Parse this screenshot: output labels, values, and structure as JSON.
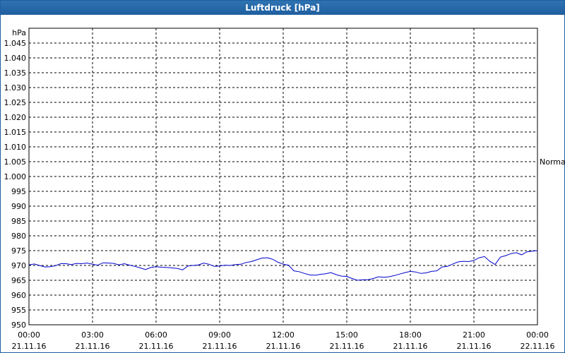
{
  "window": {
    "title": "Luftdruck [hPa]"
  },
  "chart_data": {
    "type": "line",
    "title": "Luftdruck [hPa]",
    "ylabel": "hPa",
    "ylim": [
      950,
      1050
    ],
    "yticks": [
      "1.045",
      "1.040",
      "1.035",
      "1.030",
      "1.025",
      "1.020",
      "1.015",
      "1.010",
      "1.005",
      "1.000",
      "995",
      "990",
      "985",
      "980",
      "975",
      "970",
      "965",
      "960",
      "955",
      "950"
    ],
    "ytick_values": [
      1045,
      1040,
      1035,
      1030,
      1025,
      1020,
      1015,
      1010,
      1005,
      1000,
      995,
      990,
      985,
      980,
      975,
      970,
      965,
      960,
      955,
      950
    ],
    "xticks": [
      {
        "time": "00:00",
        "date": "21.11.16"
      },
      {
        "time": "03:00",
        "date": "21.11.16"
      },
      {
        "time": "06:00",
        "date": "21.11.16"
      },
      {
        "time": "09:00",
        "date": "21.11.16"
      },
      {
        "time": "12:00",
        "date": "21.11.16"
      },
      {
        "time": "15:00",
        "date": "21.11.16"
      },
      {
        "time": "18:00",
        "date": "21.11.16"
      },
      {
        "time": "21:00",
        "date": "21.11.16"
      },
      {
        "time": "00:00",
        "date": "22.11.16"
      }
    ],
    "reference_label": "Normal",
    "reference_value": 1005,
    "grid": true,
    "series_color": "#0000cc",
    "series": [
      {
        "x": [
          "00:00",
          "00:15",
          "00:30",
          "00:45",
          "01:00",
          "01:15",
          "01:30",
          "01:45",
          "02:00",
          "02:15",
          "02:30",
          "02:45",
          "03:00",
          "03:15",
          "03:30",
          "03:45",
          "04:00",
          "04:15",
          "04:30",
          "04:45",
          "05:00",
          "05:15",
          "05:30",
          "05:45",
          "06:00",
          "06:15",
          "06:30",
          "06:45",
          "07:00",
          "07:15",
          "07:30",
          "07:45",
          "08:00",
          "08:15",
          "08:30",
          "08:45",
          "09:00",
          "09:15",
          "09:30",
          "09:45",
          "10:00",
          "10:15",
          "10:30",
          "10:45",
          "11:00",
          "11:15",
          "11:30",
          "11:45",
          "12:00",
          "12:15",
          "12:30",
          "12:45",
          "13:00",
          "13:15",
          "13:30",
          "13:45",
          "14:00",
          "14:15",
          "14:30",
          "14:45",
          "15:00",
          "15:15",
          "15:30",
          "15:45",
          "16:00",
          "16:15",
          "16:30",
          "16:45",
          "17:00",
          "17:15",
          "17:30",
          "17:45",
          "18:00",
          "18:15",
          "18:30",
          "18:45",
          "19:00",
          "19:15",
          "19:30",
          "19:45",
          "20:00",
          "20:15",
          "20:30",
          "20:45",
          "21:00",
          "21:15",
          "21:30",
          "21:45",
          "22:00",
          "22:15",
          "22:30",
          "22:45",
          "23:00",
          "23:15",
          "23:30",
          "23:45",
          "00:00"
        ],
        "values": [
          970.2,
          970.5,
          970.0,
          969.5,
          969.6,
          969.9,
          970.6,
          970.6,
          970.3,
          970.7,
          970.6,
          970.8,
          970.4,
          970.1,
          970.9,
          970.8,
          970.7,
          970.2,
          970.6,
          970.1,
          969.7,
          969.2,
          968.6,
          969.3,
          969.6,
          969.4,
          969.3,
          969.2,
          969.0,
          968.5,
          969.8,
          970.0,
          970.2,
          970.8,
          970.4,
          969.7,
          969.8,
          970.1,
          970.0,
          970.3,
          970.4,
          971.0,
          971.3,
          971.9,
          972.5,
          972.6,
          972.1,
          971.1,
          970.4,
          970.1,
          968.2,
          967.9,
          967.3,
          966.8,
          966.7,
          967.0,
          967.2,
          967.6,
          966.9,
          966.4,
          966.3,
          965.6,
          965.0,
          965.2,
          965.2,
          965.6,
          966.2,
          966.0,
          966.2,
          966.6,
          967.1,
          967.6,
          968.0,
          967.8,
          967.3,
          967.5,
          968.0,
          968.2,
          969.5,
          969.7,
          970.5,
          971.2,
          971.4,
          971.3,
          971.7,
          972.6,
          973.0,
          971.4,
          970.3,
          972.8,
          973.3,
          974.0,
          974.3,
          973.6,
          974.6,
          974.8,
          975.0
        ]
      }
    ]
  }
}
